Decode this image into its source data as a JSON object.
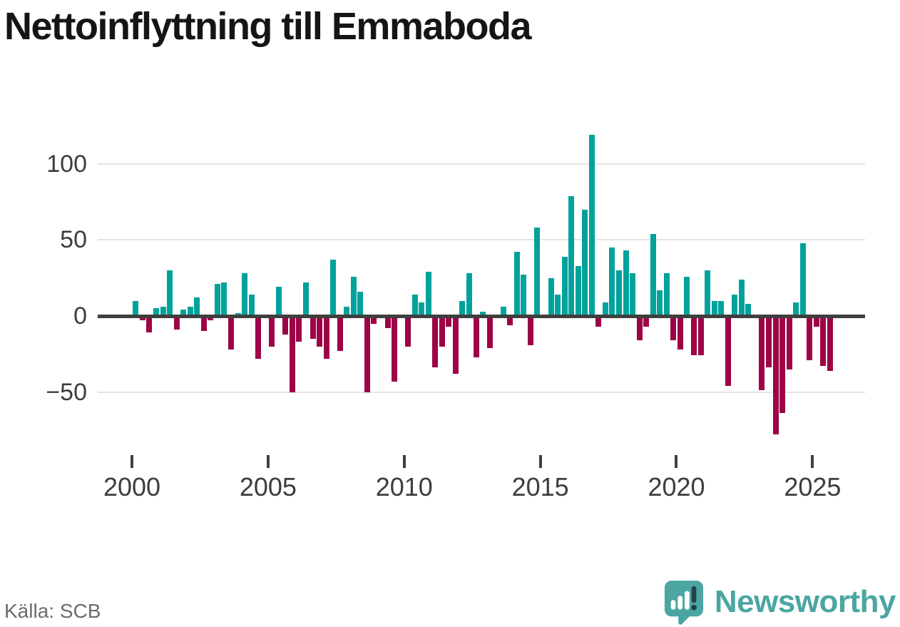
{
  "title": "Nettoinflyttning till Emmaboda",
  "source_note": "Källa: SCB",
  "brand": {
    "wordmark": "Newsworthy"
  },
  "colors": {
    "positive_bar": "#00a29b",
    "negative_bar": "#9d0346",
    "zero_line": "#3f3f3f",
    "gridline": "#e4e4e4",
    "axis_text": "#3d3d3d",
    "title_text": "#151515",
    "source_text": "#6c6c6c",
    "brand_teal": "#4ba6a2",
    "logo_mark_dark": "#24404c"
  },
  "chart_data": {
    "type": "bar",
    "title": "Nettoinflyttning till Emmaboda",
    "frequency": "quarterly",
    "start_period": "2000Q1",
    "end_period": "2025Q3",
    "x_tick_labels": [
      "2000",
      "2005",
      "2010",
      "2015",
      "2020",
      "2025"
    ],
    "y_ticks": [
      100,
      50,
      0,
      -50
    ],
    "y_tick_labels": [
      "100",
      "50",
      "0",
      "−50"
    ],
    "ylim": [
      -85,
      125
    ],
    "grid": "horizontal",
    "legend": "none",
    "values": [
      10,
      -3,
      -11,
      5,
      6,
      30,
      -9,
      4,
      6,
      12,
      -10,
      -3,
      21,
      22,
      -22,
      2,
      28,
      14,
      -28,
      0,
      -20,
      19,
      -12,
      -50,
      -17,
      22,
      -15,
      -20,
      -28,
      37,
      -23,
      6,
      26,
      16,
      -50,
      -5,
      0,
      -8,
      -43,
      0,
      -20,
      14,
      9,
      29,
      -34,
      -20,
      -7,
      -38,
      10,
      28,
      -27,
      3,
      -21,
      0,
      6,
      -6,
      42,
      27,
      -19,
      58,
      0,
      25,
      14,
      39,
      79,
      33,
      70,
      119,
      -7,
      9,
      45,
      30,
      43,
      28,
      -16,
      -7,
      54,
      17,
      28,
      -16,
      -22,
      26,
      -26,
      -26,
      30,
      10,
      10,
      -46,
      14,
      24,
      8,
      0,
      -49,
      -34,
      -78,
      -64,
      -35,
      9,
      48,
      -29,
      -7,
      -33,
      -36
    ]
  }
}
